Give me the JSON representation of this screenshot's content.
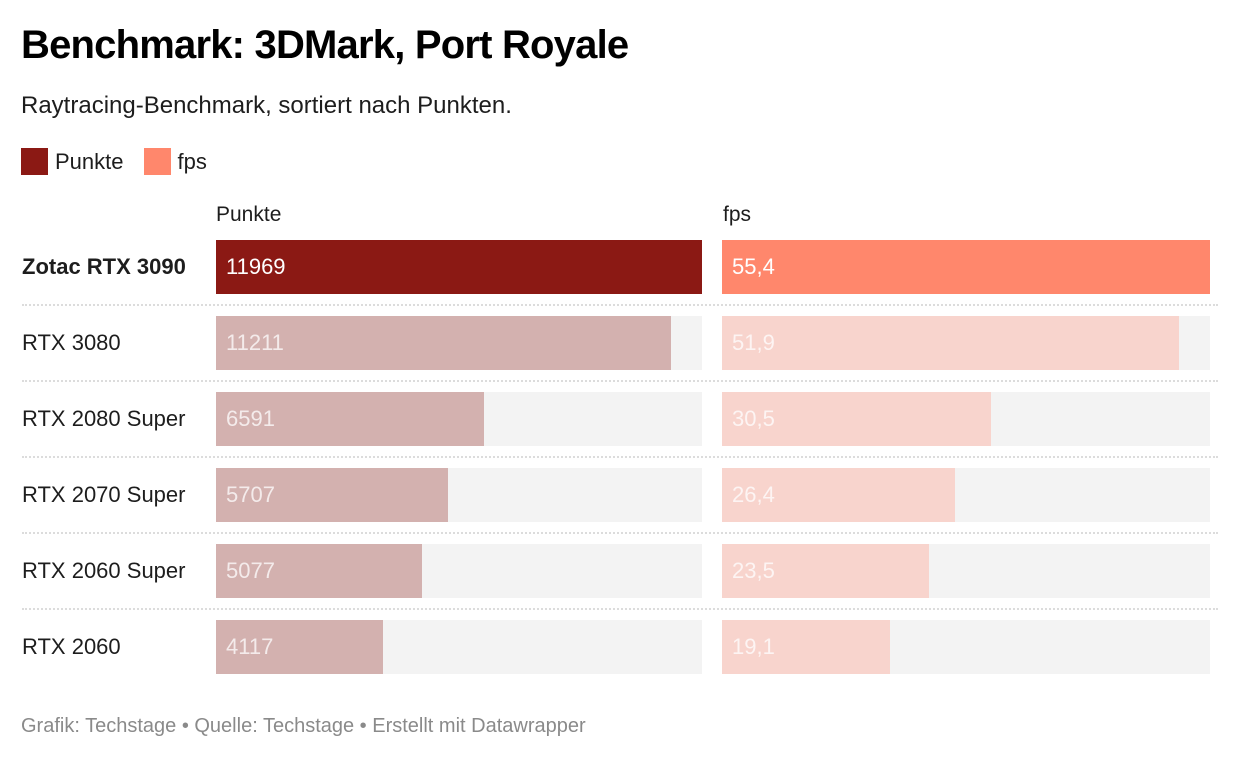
{
  "header": {
    "title": "Benchmark: 3DMark, Port Royale",
    "subtitle": "Raytracing-Benchmark, sortiert nach Punkten."
  },
  "legend": [
    {
      "label": "Punkte",
      "color": "#8b1914"
    },
    {
      "label": "fps",
      "color": "#ff876c"
    }
  ],
  "colors": {
    "punkte_highlight": "#8b1914",
    "punkte_muted": "#d3b1af",
    "fps_highlight": "#ff876c",
    "fps_muted": "#f8d4cd",
    "track": "#f3f3f3"
  },
  "footer": "Grafik: Techstage • Quelle: Techstage • Erstellt mit Datawrapper",
  "chart_data": {
    "type": "bar",
    "title": "Benchmark: 3DMark, Port Royale",
    "subtitle": "Raytracing-Benchmark, sortiert nach Punkten.",
    "orientation": "horizontal",
    "layout": "split-bars",
    "categories": [
      "Zotac RTX 3090",
      "RTX 3080",
      "RTX 2080 Super",
      "RTX 2070 Super",
      "RTX 2060 Super",
      "RTX 2060"
    ],
    "highlighted_category": "Zotac RTX 3090",
    "series": [
      {
        "name": "Punkte",
        "values": [
          11969,
          11211,
          6591,
          5707,
          5077,
          4117
        ],
        "labels": [
          "11969",
          "11211",
          "6591",
          "5707",
          "5077",
          "4117"
        ],
        "max": 11969
      },
      {
        "name": "fps",
        "values": [
          55.4,
          51.9,
          30.5,
          26.4,
          23.5,
          19.1
        ],
        "labels": [
          "55,4",
          "51,9",
          "30,5",
          "26,4",
          "23,5",
          "19,1"
        ],
        "max": 55.4
      }
    ],
    "legend_position": "top-left",
    "grid": false
  }
}
